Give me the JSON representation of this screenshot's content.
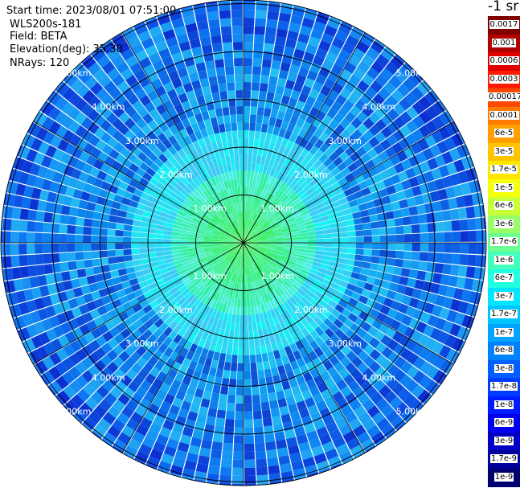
{
  "header": {
    "start_time": "Start time: 2023/08/01 07:51:00",
    "station": "WLS200s-181",
    "field": "Field: BETA",
    "elevation": "Elevation(deg): 35.30",
    "nrays": "NRays: 120"
  },
  "chart_data": {
    "type": "heatmap",
    "subtype": "polar-ppi",
    "field": "BETA",
    "units_label": "-1 sr",
    "nrays": 120,
    "elevation_deg": 35.3,
    "range_rings_km": [
      1,
      2,
      3,
      4,
      5
    ],
    "ring_labels": [
      "1.00km",
      "2.00km",
      "3.00km",
      "4.00km",
      "5.00km"
    ],
    "spokes_deg": [
      0,
      30,
      60,
      90,
      120,
      150,
      180,
      210,
      240,
      270,
      300,
      330
    ],
    "colorbar": {
      "labels": [
        "0.0017",
        "0.001",
        "0.0006",
        "0.0003",
        "0.00017",
        "0.0001",
        "6e-5",
        "3e-5",
        "1.7e-5",
        "1e-5",
        "6e-6",
        "3e-6",
        "1.7e-6",
        "1e-6",
        "6e-7",
        "3e-7",
        "1.7e-7",
        "1e-7",
        "6e-8",
        "3e-8",
        "1.7e-8",
        "1e-8",
        "6e-9",
        "3e-9",
        "1.7e-9",
        "1e-9"
      ],
      "colors": [
        "#800000",
        "#b00000",
        "#e00000",
        "#ff1a00",
        "#ff4800",
        "#ff7a00",
        "#ffa000",
        "#ffc400",
        "#ffe600",
        "#f2ff0a",
        "#c8ff36",
        "#96ff68",
        "#6cff92",
        "#44ffbc",
        "#20ffe0",
        "#00e6ff",
        "#00c4ff",
        "#00a4ff",
        "#0082ff",
        "#0060ff",
        "#003cff",
        "#001aff",
        "#0000ee",
        "#0000c4",
        "#00009a",
        "#000070"
      ]
    }
  }
}
